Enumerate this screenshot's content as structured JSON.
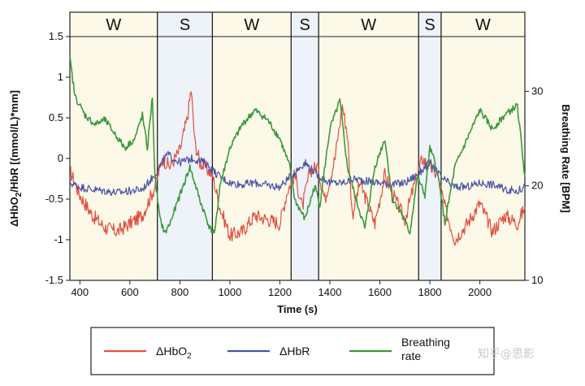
{
  "chart_data": {
    "type": "line",
    "xlabel": "Time (s)",
    "ylabel_left": "ΔHbO2/HbR [(mmol/L)*mm]",
    "ylabel_right": "Breathing Rate [BPM]",
    "x_ticks": [
      400,
      600,
      800,
      1000,
      1200,
      1400,
      1600,
      1800,
      2000
    ],
    "y_left_ticks": [
      1.5,
      1,
      0.5,
      0,
      -0.5,
      -1,
      -1.5
    ],
    "y_right_ticks": [
      30,
      20,
      10
    ],
    "xlim": [
      360,
      2180
    ],
    "ylim_left": [
      -1.5,
      1.5
    ],
    "ylim_right": [
      10,
      35.8
    ],
    "grid": false,
    "legend_position": "bottom",
    "stages": [
      {
        "label": "W",
        "start": 360,
        "end": 710,
        "color": "#fdf9e8"
      },
      {
        "label": "S",
        "start": 710,
        "end": 930,
        "color": "#eef3fa"
      },
      {
        "label": "W",
        "start": 930,
        "end": 1245,
        "color": "#fdf9e8"
      },
      {
        "label": "S",
        "start": 1245,
        "end": 1355,
        "color": "#eef3fa"
      },
      {
        "label": "W",
        "start": 1355,
        "end": 1755,
        "color": "#fdf9e8"
      },
      {
        "label": "S",
        "start": 1755,
        "end": 1845,
        "color": "#eef3fa"
      },
      {
        "label": "W",
        "start": 1845,
        "end": 2180,
        "color": "#fdf9e8"
      }
    ],
    "series": [
      {
        "name": "ΔHbO2",
        "axis": "left",
        "color": "#e05040",
        "legend_label": "ΔHbO",
        "legend_sub": "2",
        "x": [
          360,
          400,
          450,
          500,
          550,
          600,
          650,
          700,
          730,
          760,
          800,
          830,
          845,
          860,
          880,
          900,
          930,
          960,
          1000,
          1050,
          1100,
          1150,
          1200,
          1230,
          1260,
          1290,
          1320,
          1350,
          1380,
          1420,
          1450,
          1470,
          1490,
          1520,
          1550,
          1580,
          1620,
          1660,
          1700,
          1740,
          1770,
          1800,
          1830,
          1860,
          1900,
          1950,
          2000,
          2050,
          2100,
          2150,
          2180
        ],
        "y": [
          -0.15,
          -0.45,
          -0.7,
          -0.85,
          -0.9,
          -0.8,
          -0.7,
          -0.35,
          0.0,
          -0.1,
          0.1,
          0.5,
          0.85,
          0.2,
          -0.05,
          -0.1,
          -0.2,
          -0.6,
          -0.95,
          -0.9,
          -0.7,
          -0.75,
          -0.8,
          -0.4,
          -0.2,
          -0.6,
          -0.15,
          -0.1,
          -0.5,
          0.0,
          0.65,
          0.3,
          -0.7,
          -0.3,
          -0.55,
          -0.8,
          -0.2,
          -0.5,
          -0.75,
          -0.3,
          0.0,
          -0.1,
          -0.2,
          -0.6,
          -1.0,
          -0.8,
          -0.55,
          -0.9,
          -0.7,
          -0.8,
          -0.6
        ]
      },
      {
        "name": "ΔHbR",
        "axis": "left",
        "color": "#4a54a8",
        "legend_label": "ΔHbR",
        "legend_sub": "",
        "x": [
          360,
          400,
          450,
          500,
          550,
          600,
          650,
          700,
          750,
          800,
          850,
          900,
          950,
          1000,
          1050,
          1100,
          1150,
          1200,
          1250,
          1300,
          1350,
          1400,
          1450,
          1500,
          1550,
          1600,
          1650,
          1700,
          1750,
          1800,
          1850,
          1900,
          1950,
          2000,
          2050,
          2100,
          2150,
          2180
        ],
        "y": [
          -0.3,
          -0.35,
          -0.38,
          -0.4,
          -0.42,
          -0.4,
          -0.38,
          -0.2,
          0.05,
          -0.05,
          0.0,
          -0.05,
          -0.2,
          -0.3,
          -0.32,
          -0.3,
          -0.33,
          -0.35,
          -0.2,
          -0.05,
          -0.2,
          -0.3,
          -0.3,
          -0.25,
          -0.28,
          -0.3,
          -0.32,
          -0.3,
          -0.2,
          -0.05,
          -0.25,
          -0.35,
          -0.35,
          -0.3,
          -0.32,
          -0.38,
          -0.4,
          -0.35
        ]
      },
      {
        "name": "Breathing rate",
        "axis": "right",
        "color": "#3a9a3a",
        "legend_label": "Breathing",
        "legend_label2": "rate",
        "legend_sub": "",
        "x": [
          360,
          380,
          420,
          460,
          500,
          540,
          580,
          620,
          650,
          670,
          690,
          700,
          720,
          740,
          760,
          800,
          840,
          880,
          920,
          940,
          960,
          1000,
          1050,
          1100,
          1150,
          1200,
          1240,
          1260,
          1300,
          1340,
          1360,
          1400,
          1440,
          1470,
          1500,
          1540,
          1580,
          1620,
          1650,
          1680,
          1720,
          1750,
          1780,
          1800,
          1820,
          1840,
          1860,
          1900,
          1950,
          2000,
          2050,
          2100,
          2150,
          2180
        ],
        "y": [
          33.5,
          29.5,
          27.5,
          26.5,
          27,
          25.5,
          24,
          25,
          27.5,
          24,
          29.5,
          21,
          16.5,
          15,
          16,
          19,
          22,
          18.5,
          15.5,
          15,
          20,
          24,
          26.5,
          28,
          27,
          25,
          22,
          18.5,
          16.5,
          20,
          18,
          26,
          29,
          22,
          19,
          15.5,
          22,
          25,
          18.5,
          17.5,
          15,
          21,
          19,
          24,
          22.5,
          20,
          16,
          22,
          25,
          28,
          26,
          27.5,
          28.5,
          21
        ]
      }
    ],
    "legend": [
      {
        "label": "ΔHbO",
        "sub": "2",
        "color": "#e05040"
      },
      {
        "label": "ΔHbR",
        "sub": "",
        "color": "#4a54a8"
      },
      {
        "label": "Breathing",
        "label2": "rate",
        "color": "#3a9a3a"
      }
    ]
  },
  "watermark": "知乎@思影"
}
